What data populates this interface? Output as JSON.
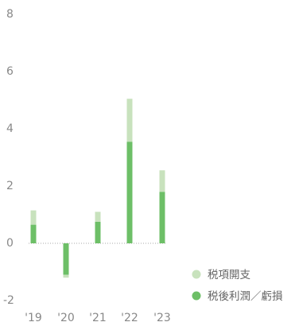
{
  "chart_data": {
    "type": "bar",
    "stacked": true,
    "categories": [
      "'19",
      "'20",
      "'21",
      "'22",
      "'23"
    ],
    "series": [
      {
        "name": "税後利潤／虧損",
        "values": [
          0.65,
          -1.1,
          0.75,
          3.55,
          1.8
        ],
        "color": "#6dbf67"
      },
      {
        "name": "税項開支",
        "values": [
          0.5,
          -0.1,
          0.35,
          1.5,
          0.75
        ],
        "color": "#c8e2bd"
      }
    ],
    "yticks": [
      "8",
      "6",
      "4",
      "2",
      "0",
      "-2"
    ],
    "ylim": [
      -2,
      8
    ],
    "grid": false,
    "zero_line_style": "dotted",
    "legend": {
      "position": "bottom-right",
      "items": [
        "税項開支",
        "税後利潤／虧損"
      ]
    }
  }
}
